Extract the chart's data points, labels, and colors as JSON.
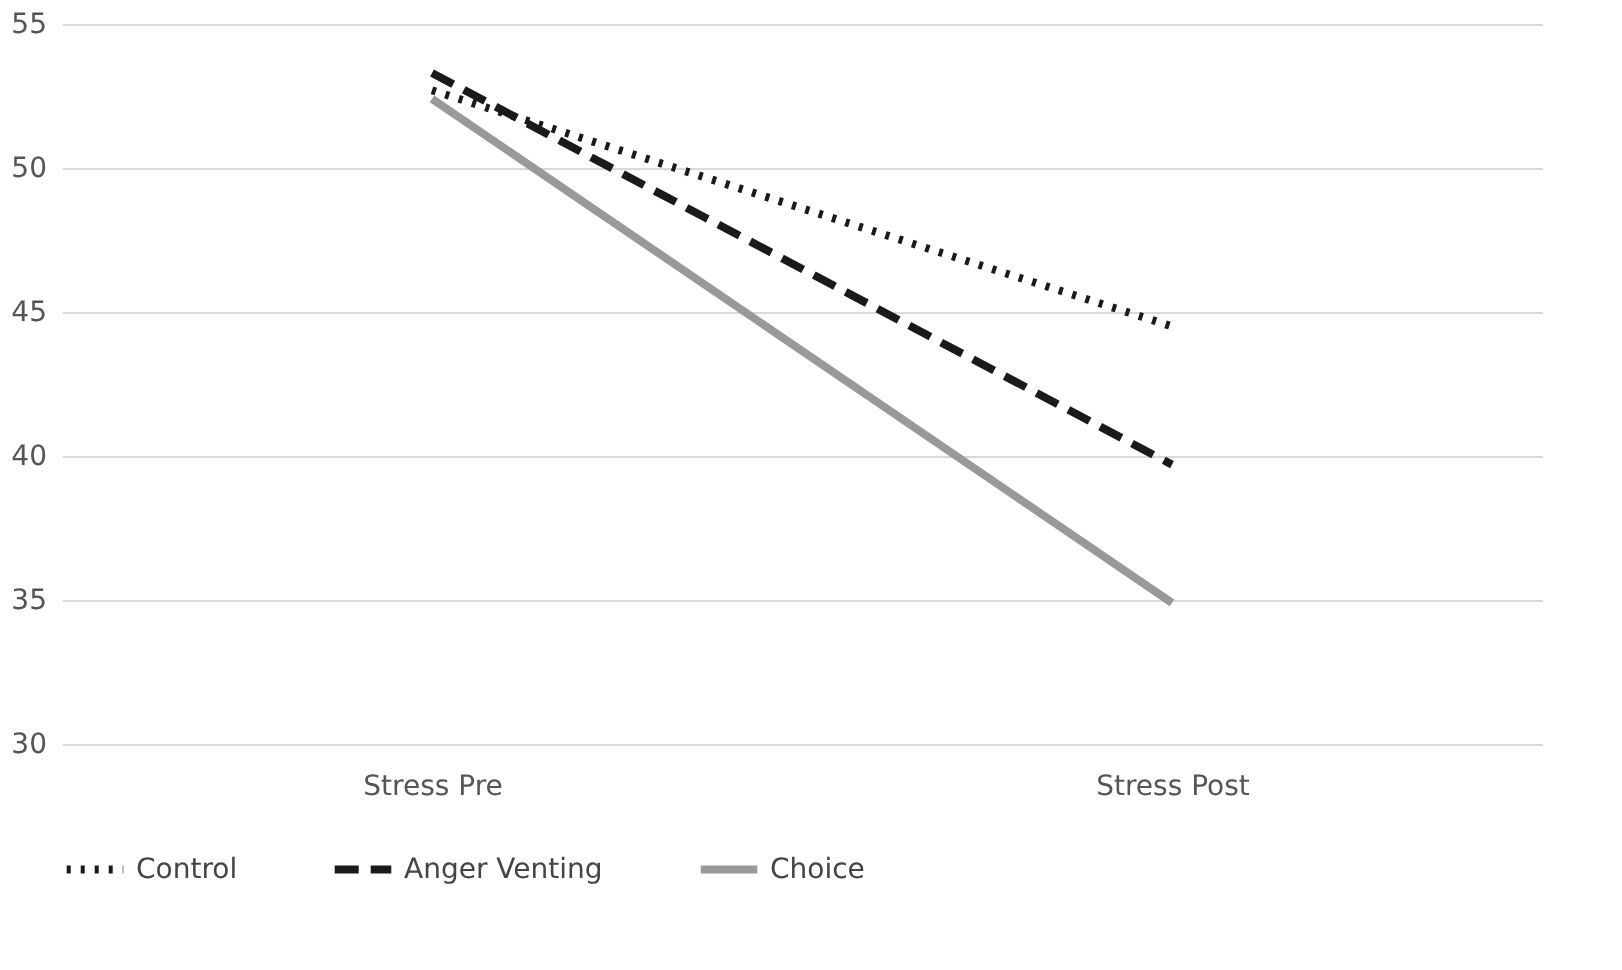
{
  "chart_data": {
    "type": "line",
    "categories": [
      "Stress Pre",
      "Stress Post"
    ],
    "series": [
      {
        "name": "Control",
        "color": "#1a1a1a",
        "values": [
          52.7,
          44.5
        ],
        "line_style": "dotted"
      },
      {
        "name": "Anger Venting",
        "color": "#1a1a1a",
        "values": [
          53.3,
          39.7
        ],
        "line_style": "dashed"
      },
      {
        "name": "Choice",
        "color": "#999999",
        "values": [
          52.4,
          34.9
        ],
        "line_style": "solid"
      }
    ],
    "ylim": [
      30,
      55
    ],
    "yticks": [
      30,
      35,
      40,
      45,
      50,
      55
    ],
    "grid": "y",
    "legend": "bottom",
    "marker": "none"
  }
}
